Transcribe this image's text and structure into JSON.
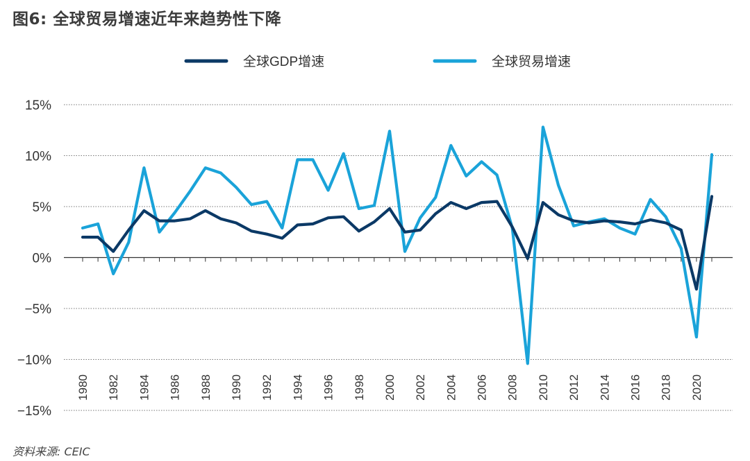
{
  "title": "图6: 全球贸易增速近年来趋势性下降",
  "source": "资料来源: CEIC",
  "colors": {
    "gdp": "#0b3966",
    "trade": "#1aa3d9",
    "axis": "#333333",
    "grid": "#777777"
  },
  "chart_data": {
    "type": "line",
    "x": [
      1980,
      1981,
      1982,
      1983,
      1984,
      1985,
      1986,
      1987,
      1988,
      1989,
      1990,
      1991,
      1992,
      1993,
      1994,
      1995,
      1996,
      1997,
      1998,
      1999,
      2000,
      2001,
      2002,
      2003,
      2004,
      2005,
      2006,
      2007,
      2008,
      2009,
      2010,
      2011,
      2012,
      2013,
      2014,
      2015,
      2016,
      2017,
      2018,
      2019,
      2020,
      2021
    ],
    "x_tick_labels": [
      "1980",
      "1982",
      "1984",
      "1986",
      "1988",
      "1990",
      "1992",
      "1994",
      "1996",
      "1998",
      "2000",
      "2002",
      "2004",
      "2006",
      "2008",
      "2010",
      "2012",
      "2014",
      "2016",
      "2018",
      "2020"
    ],
    "y_tick_labels": [
      "15%",
      "10%",
      "5%",
      "0%",
      "−5%",
      "−10%",
      "−15%"
    ],
    "y_ticks": [
      15,
      10,
      5,
      0,
      -5,
      -10,
      -15
    ],
    "ylim": [
      -15,
      15
    ],
    "grid": "horizontal dotted",
    "legend_position": "top-center",
    "series": [
      {
        "name": "全球GDP增速",
        "color_key": "gdp",
        "values": [
          2.0,
          2.0,
          0.6,
          2.7,
          4.6,
          3.6,
          3.6,
          3.8,
          4.6,
          3.8,
          3.4,
          2.6,
          2.3,
          1.9,
          3.2,
          3.3,
          3.9,
          4.0,
          2.6,
          3.5,
          4.8,
          2.5,
          2.7,
          4.3,
          5.4,
          4.8,
          5.4,
          5.5,
          3.0,
          -0.1,
          5.4,
          4.2,
          3.6,
          3.4,
          3.6,
          3.5,
          3.3,
          3.7,
          3.4,
          2.7,
          -3.1,
          6.0
        ]
      },
      {
        "name": "全球贸易增速",
        "color_key": "trade",
        "values": [
          2.9,
          3.3,
          -1.6,
          1.5,
          8.8,
          2.5,
          4.4,
          6.5,
          8.8,
          8.3,
          6.9,
          5.2,
          5.5,
          2.9,
          9.6,
          9.6,
          6.6,
          10.2,
          4.8,
          5.1,
          12.4,
          0.6,
          3.9,
          5.9,
          11.0,
          8.0,
          9.4,
          8.1,
          2.9,
          -10.4,
          12.8,
          7.1,
          3.1,
          3.5,
          3.8,
          2.9,
          2.3,
          5.7,
          4.0,
          0.9,
          -7.8,
          10.1
        ]
      }
    ]
  }
}
